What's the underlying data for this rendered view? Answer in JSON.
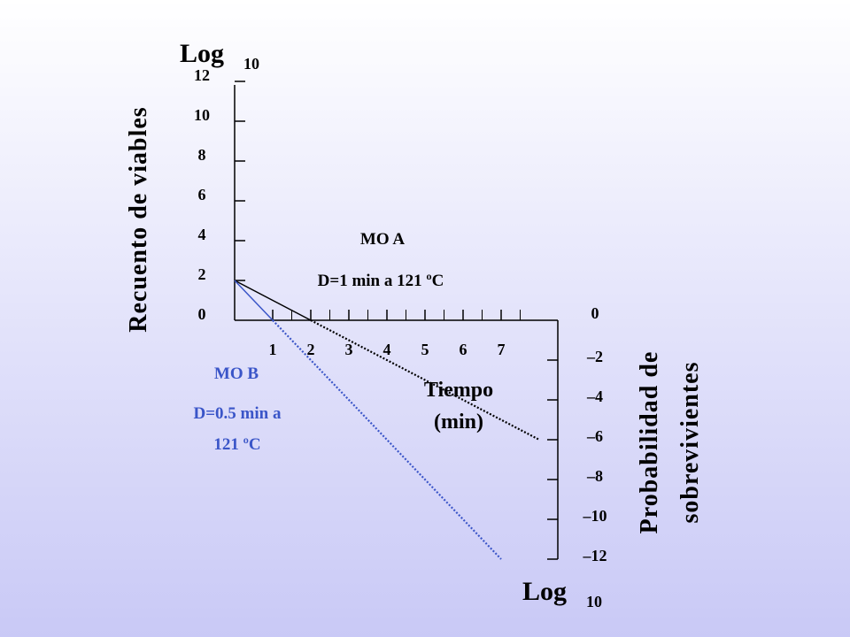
{
  "chart_data": {
    "type": "line",
    "left_axis": {
      "header": "Log",
      "header_sub": "10",
      "label": "Recuento de viables",
      "ticks": [
        "0",
        "2",
        "4",
        "6",
        "8",
        "10",
        "12"
      ]
    },
    "x_axis": {
      "label_line1": "Tiempo",
      "label_line2": "(min)",
      "ticks": [
        "1",
        "2",
        "3",
        "4",
        "5",
        "6",
        "7"
      ]
    },
    "right_axis": {
      "header": "Log",
      "header_sub": "10",
      "label_line1": "Probabilidad de",
      "label_line2": "sobrevivientes",
      "ticks": [
        "0",
        "–2",
        "–4",
        "–6",
        "–8",
        "–10",
        "–12"
      ]
    },
    "series": [
      {
        "name": "MO A",
        "annotation": "D=1 min a 121 ºC",
        "color": "#000000",
        "x": [
          0,
          2,
          8
        ],
        "y": [
          2,
          0,
          -6
        ]
      },
      {
        "name": "MO B",
        "annotation_line1": "D=0.5 min a",
        "annotation_line2": "121 ºC",
        "color": "#3a55c8",
        "x": [
          0,
          1,
          7
        ],
        "y": [
          2,
          0,
          -12
        ]
      }
    ]
  }
}
